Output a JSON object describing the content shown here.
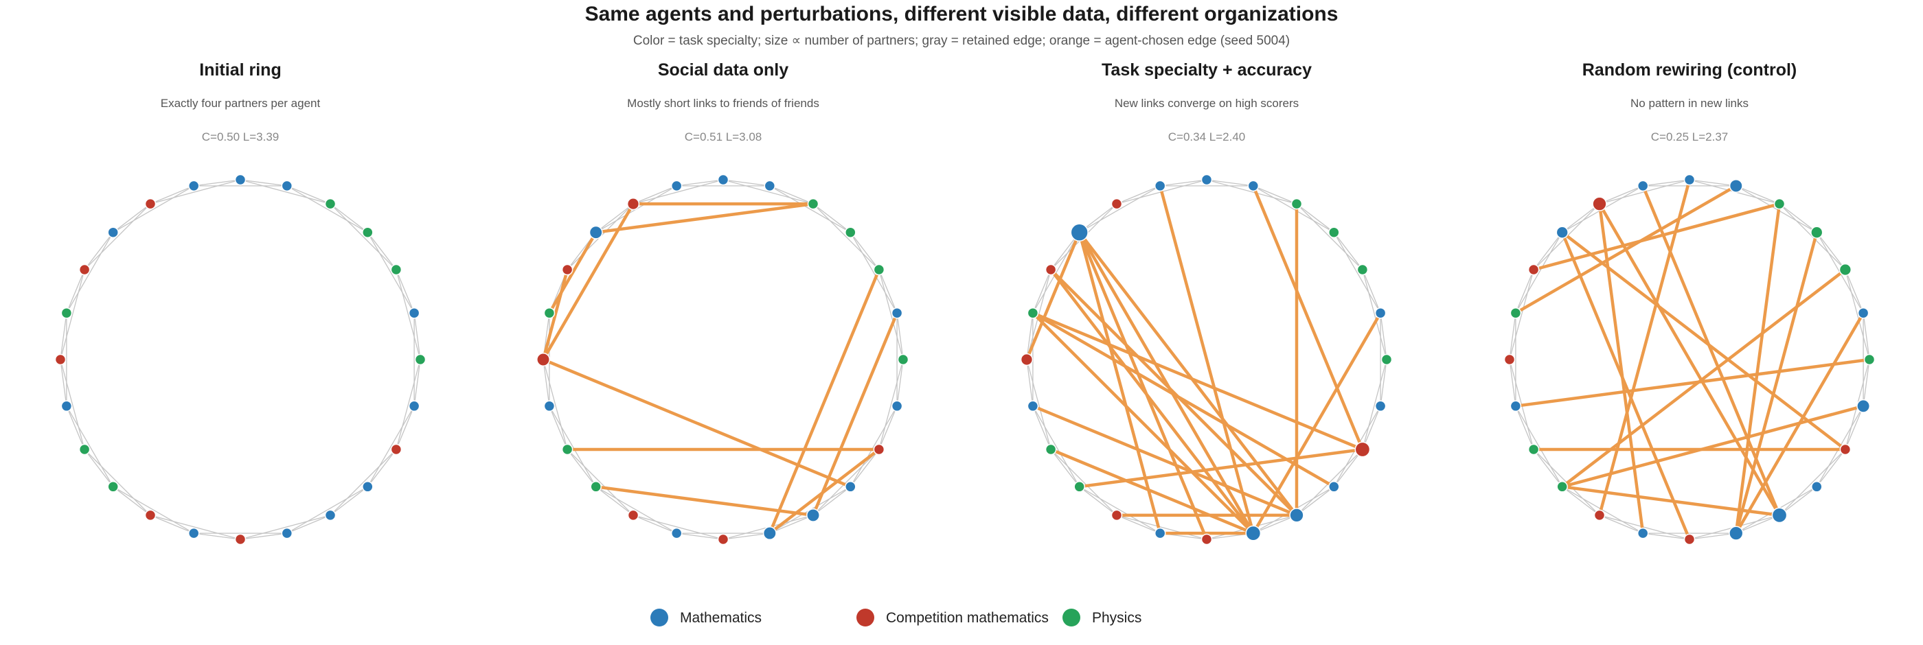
{
  "title": "Same agents and perturbations, different visible data, different organizations",
  "subtitle": "Color = task specialty; size ∝ number of partners; gray = retained edge; orange = agent-chosen edge (seed 5004)",
  "colors": {
    "Mathematics": "#2b7bb9",
    "Competition mathematics": "#c0392b",
    "Physics": "#27a35a",
    "retained_edge": "#c4c4c4",
    "chosen_edge": "#ec9a4a"
  },
  "legend": [
    {
      "label": "Mathematics",
      "specialty": "Mathematics"
    },
    {
      "label": "Competition mathematics",
      "specialty": "Competition mathematics"
    },
    {
      "label": "Physics",
      "specialty": "Physics"
    }
  ],
  "agents": [
    "Mathematics",
    "Mathematics",
    "Competition mathematics",
    "Mathematics",
    "Competition mathematics",
    "Physics",
    "Competition mathematics",
    "Mathematics",
    "Physics",
    "Physics",
    "Competition mathematics",
    "Mathematics",
    "Competition mathematics",
    "Mathematics",
    "Mathematics",
    "Mathematics",
    "Competition mathematics",
    "Mathematics",
    "Physics",
    "Mathematics",
    "Physics",
    "Physics",
    "Physics",
    "Mathematics"
  ],
  "panels": [
    {
      "title": "Initial ring",
      "subtitle": "Exactly four partners per agent",
      "stats": "C=0.50 L=3.39",
      "chosen_edges": [],
      "hubs": []
    },
    {
      "title": "Social data only",
      "subtitle": "Mostly short links to friends of friends",
      "stats": "C=0.51 L=3.08",
      "chosen_edges": [
        [
          2,
          22
        ],
        [
          3,
          22
        ],
        [
          2,
          6
        ],
        [
          3,
          5
        ],
        [
          4,
          6
        ],
        [
          6,
          15
        ],
        [
          9,
          14
        ],
        [
          8,
          16
        ],
        [
          16,
          13
        ],
        [
          13,
          20
        ],
        [
          14,
          19
        ]
      ],
      "hubs": [
        {
          "node": 3,
          "degree": 6
        },
        {
          "node": 6,
          "degree": 6
        },
        {
          "node": 2,
          "degree": 5
        },
        {
          "node": 13,
          "degree": 6
        },
        {
          "node": 14,
          "degree": 6
        }
      ]
    },
    {
      "title": "Task specialty + accuracy",
      "subtitle": "New links converge on high scorers",
      "stats": "C=0.34 L=2.40",
      "chosen_edges": [
        [
          14,
          22
        ],
        [
          16,
          5
        ],
        [
          14,
          7
        ],
        [
          3,
          14
        ],
        [
          3,
          13
        ],
        [
          3,
          11
        ],
        [
          3,
          12
        ],
        [
          3,
          6
        ],
        [
          4,
          13
        ],
        [
          4,
          14
        ],
        [
          5,
          13
        ],
        [
          5,
          15
        ],
        [
          16,
          9
        ],
        [
          13,
          8
        ],
        [
          13,
          19
        ],
        [
          14,
          10
        ],
        [
          13,
          1
        ],
        [
          13,
          11
        ],
        [
          16,
          23
        ]
      ],
      "hubs": [
        {
          "node": 3,
          "degree": 11
        },
        {
          "node": 16,
          "degree": 8
        },
        {
          "node": 13,
          "degree": 8
        },
        {
          "node": 14,
          "degree": 7
        },
        {
          "node": 6,
          "degree": 5
        }
      ]
    },
    {
      "title": "Random rewiring (control)",
      "subtitle": "No pattern in new links",
      "stats": "C=0.25 L=2.37",
      "chosen_edges": [
        [
          22,
          4
        ],
        [
          23,
          5
        ],
        [
          2,
          14
        ],
        [
          2,
          11
        ],
        [
          3,
          12
        ],
        [
          3,
          16
        ],
        [
          8,
          16
        ],
        [
          9,
          14
        ],
        [
          9,
          17
        ],
        [
          20,
          9
        ],
        [
          19,
          13
        ],
        [
          18,
          7
        ],
        [
          21,
          13
        ],
        [
          13,
          22
        ],
        [
          1,
          14
        ],
        [
          0,
          10
        ]
      ],
      "hubs": [
        {
          "node": 2,
          "degree": 7
        },
        {
          "node": 14,
          "degree": 8
        },
        {
          "node": 13,
          "degree": 7
        },
        {
          "node": 17,
          "degree": 6
        },
        {
          "node": 23,
          "degree": 6
        },
        {
          "node": 20,
          "degree": 5
        },
        {
          "node": 3,
          "degree": 5
        },
        {
          "node": 21,
          "degree": 5
        }
      ]
    }
  ]
}
